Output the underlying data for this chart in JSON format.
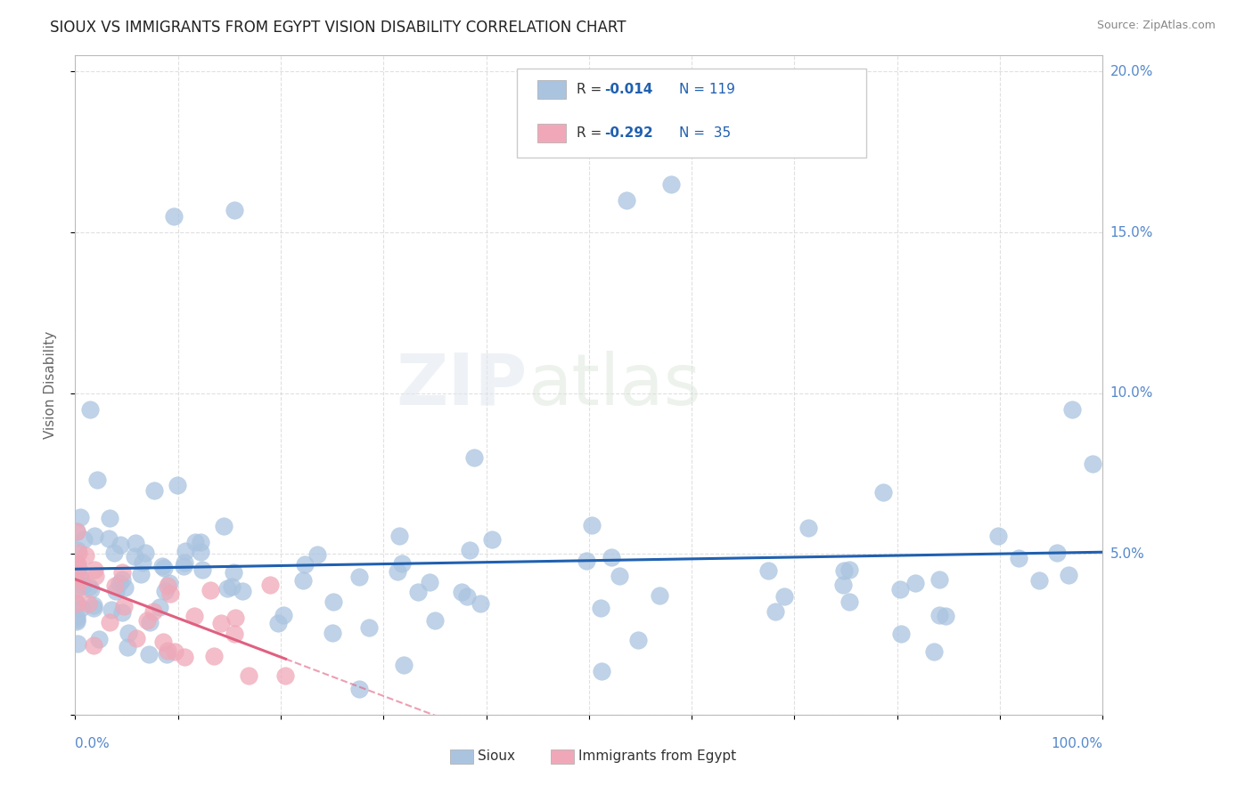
{
  "title": "SIOUX VS IMMIGRANTS FROM EGYPT VISION DISABILITY CORRELATION CHART",
  "source": "Source: ZipAtlas.com",
  "ylabel": "Vision Disability",
  "watermark_zip": "ZIP",
  "watermark_atlas": "atlas",
  "legend_r1": "R = -0.014",
  "legend_n1": "N = 119",
  "legend_r2": "R = -0.292",
  "legend_n2": "N =  35",
  "sioux_color": "#aac4e0",
  "egypt_color": "#f0a8b8",
  "sioux_line_color": "#2060b0",
  "egypt_line_color": "#e06080",
  "grid_color": "#cccccc",
  "bg_color": "#ffffff",
  "title_color": "#222222",
  "source_color": "#888888",
  "axis_label_color": "#5588cc",
  "ylabel_color": "#666666"
}
